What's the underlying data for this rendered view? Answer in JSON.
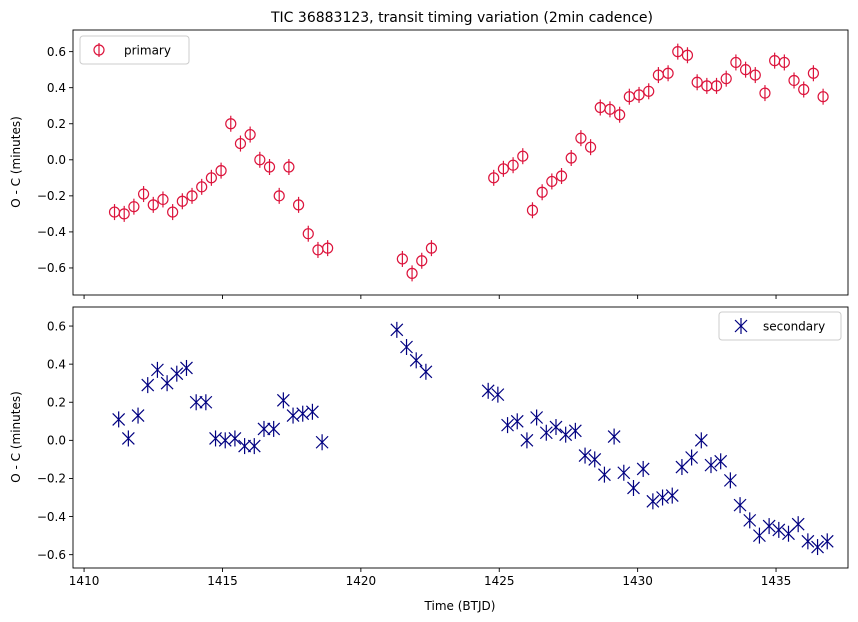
{
  "chart_data": [
    {
      "type": "scatter",
      "title": "TIC 36883123, transit timing variation (2min cadence)",
      "xlabel": "",
      "ylabel": "O - C (minutes)",
      "xlim": [
        1409.6,
        1437.6
      ],
      "ylim": [
        -0.75,
        0.72
      ],
      "x_ticks": [
        1410,
        1415,
        1420,
        1425,
        1430,
        1435
      ],
      "y_ticks": [
        -0.6,
        -0.4,
        -0.2,
        0.0,
        0.2,
        0.4,
        0.6
      ],
      "y_tick_labels": [
        "−0.6",
        "−0.4",
        "−0.2",
        "0.0",
        "0.2",
        "0.4",
        "0.6"
      ],
      "x_tick_labels_visible": false,
      "legend": "upper left",
      "series": [
        {
          "name": "primary",
          "marker": "circle-errorbar",
          "color": "#dc143c",
          "points": [
            [
              1411.1,
              -0.29
            ],
            [
              1411.45,
              -0.3
            ],
            [
              1411.8,
              -0.26
            ],
            [
              1412.15,
              -0.19
            ],
            [
              1412.5,
              -0.25
            ],
            [
              1412.85,
              -0.22
            ],
            [
              1413.2,
              -0.29
            ],
            [
              1413.55,
              -0.23
            ],
            [
              1413.9,
              -0.2
            ],
            [
              1414.25,
              -0.15
            ],
            [
              1414.6,
              -0.1
            ],
            [
              1414.95,
              -0.06
            ],
            [
              1415.3,
              0.2
            ],
            [
              1415.65,
              0.09
            ],
            [
              1416.0,
              0.14
            ],
            [
              1416.35,
              0.0
            ],
            [
              1416.7,
              -0.04
            ],
            [
              1417.05,
              -0.2
            ],
            [
              1417.4,
              -0.04
            ],
            [
              1417.75,
              -0.25
            ],
            [
              1418.1,
              -0.41
            ],
            [
              1418.45,
              -0.5
            ],
            [
              1418.8,
              -0.49
            ],
            [
              1421.5,
              -0.55
            ],
            [
              1421.85,
              -0.63
            ],
            [
              1422.2,
              -0.56
            ],
            [
              1422.55,
              -0.49
            ],
            [
              1424.8,
              -0.1
            ],
            [
              1425.15,
              -0.05
            ],
            [
              1425.5,
              -0.03
            ],
            [
              1425.85,
              0.02
            ],
            [
              1426.2,
              -0.28
            ],
            [
              1426.55,
              -0.18
            ],
            [
              1426.9,
              -0.12
            ],
            [
              1427.25,
              -0.09
            ],
            [
              1427.6,
              0.01
            ],
            [
              1427.95,
              0.12
            ],
            [
              1428.3,
              0.07
            ],
            [
              1428.65,
              0.29
            ],
            [
              1429.0,
              0.28
            ],
            [
              1429.35,
              0.25
            ],
            [
              1429.7,
              0.35
            ],
            [
              1430.05,
              0.36
            ],
            [
              1430.4,
              0.38
            ],
            [
              1430.75,
              0.47
            ],
            [
              1431.1,
              0.48
            ],
            [
              1431.45,
              0.6
            ],
            [
              1431.8,
              0.58
            ],
            [
              1432.15,
              0.43
            ],
            [
              1432.5,
              0.41
            ],
            [
              1432.85,
              0.41
            ],
            [
              1433.2,
              0.45
            ],
            [
              1433.55,
              0.54
            ],
            [
              1433.9,
              0.5
            ],
            [
              1434.25,
              0.47
            ],
            [
              1434.6,
              0.37
            ],
            [
              1434.95,
              0.55
            ],
            [
              1435.3,
              0.54
            ],
            [
              1435.65,
              0.44
            ],
            [
              1436.0,
              0.39
            ],
            [
              1436.35,
              0.48
            ],
            [
              1436.7,
              0.35
            ]
          ]
        }
      ]
    },
    {
      "type": "scatter",
      "title": "",
      "xlabel": "Time (BTJD)",
      "ylabel": "O - C (minutes)",
      "xlim": [
        1409.6,
        1437.6
      ],
      "ylim": [
        -0.67,
        0.7
      ],
      "x_ticks": [
        1410,
        1415,
        1420,
        1425,
        1430,
        1435
      ],
      "x_tick_labels": [
        "1410",
        "1415",
        "1420",
        "1425",
        "1430",
        "1435"
      ],
      "y_ticks": [
        -0.6,
        -0.4,
        -0.2,
        0.0,
        0.2,
        0.4,
        0.6
      ],
      "y_tick_labels": [
        "−0.6",
        "−0.4",
        "−0.2",
        "0.0",
        "0.2",
        "0.4",
        "0.6"
      ],
      "legend": "upper right",
      "series": [
        {
          "name": "secondary",
          "marker": "x-errorbar",
          "color": "#000080",
          "points": [
            [
              1411.25,
              0.11
            ],
            [
              1411.6,
              0.01
            ],
            [
              1411.95,
              0.13
            ],
            [
              1412.3,
              0.29
            ],
            [
              1412.65,
              0.37
            ],
            [
              1413.0,
              0.3
            ],
            [
              1413.35,
              0.35
            ],
            [
              1413.7,
              0.38
            ],
            [
              1414.05,
              0.2
            ],
            [
              1414.4,
              0.2
            ],
            [
              1414.75,
              0.01
            ],
            [
              1415.1,
              0.0
            ],
            [
              1415.45,
              0.01
            ],
            [
              1415.8,
              -0.03
            ],
            [
              1416.15,
              -0.03
            ],
            [
              1416.5,
              0.06
            ],
            [
              1416.85,
              0.06
            ],
            [
              1417.2,
              0.21
            ],
            [
              1417.55,
              0.13
            ],
            [
              1417.9,
              0.14
            ],
            [
              1418.25,
              0.15
            ],
            [
              1418.6,
              -0.01
            ],
            [
              1421.3,
              0.58
            ],
            [
              1421.65,
              0.49
            ],
            [
              1422.0,
              0.42
            ],
            [
              1422.35,
              0.36
            ],
            [
              1424.6,
              0.26
            ],
            [
              1424.95,
              0.24
            ],
            [
              1425.3,
              0.08
            ],
            [
              1425.65,
              0.1
            ],
            [
              1426.0,
              0.0
            ],
            [
              1426.35,
              0.12
            ],
            [
              1426.7,
              0.04
            ],
            [
              1427.05,
              0.07
            ],
            [
              1427.4,
              0.03
            ],
            [
              1427.75,
              0.05
            ],
            [
              1428.1,
              -0.08
            ],
            [
              1428.45,
              -0.1
            ],
            [
              1428.8,
              -0.18
            ],
            [
              1429.15,
              0.02
            ],
            [
              1429.5,
              -0.17
            ],
            [
              1429.85,
              -0.25
            ],
            [
              1430.2,
              -0.15
            ],
            [
              1430.55,
              -0.32
            ],
            [
              1430.9,
              -0.3
            ],
            [
              1431.25,
              -0.29
            ],
            [
              1431.6,
              -0.14
            ],
            [
              1431.95,
              -0.09
            ],
            [
              1432.3,
              0.0
            ],
            [
              1432.65,
              -0.13
            ],
            [
              1433.0,
              -0.11
            ],
            [
              1433.35,
              -0.21
            ],
            [
              1433.7,
              -0.34
            ],
            [
              1434.05,
              -0.42
            ],
            [
              1434.4,
              -0.5
            ],
            [
              1434.75,
              -0.45
            ],
            [
              1435.1,
              -0.47
            ],
            [
              1435.45,
              -0.49
            ],
            [
              1435.8,
              -0.44
            ],
            [
              1436.15,
              -0.53
            ],
            [
              1436.5,
              -0.56
            ],
            [
              1436.85,
              -0.53
            ]
          ]
        }
      ]
    }
  ]
}
